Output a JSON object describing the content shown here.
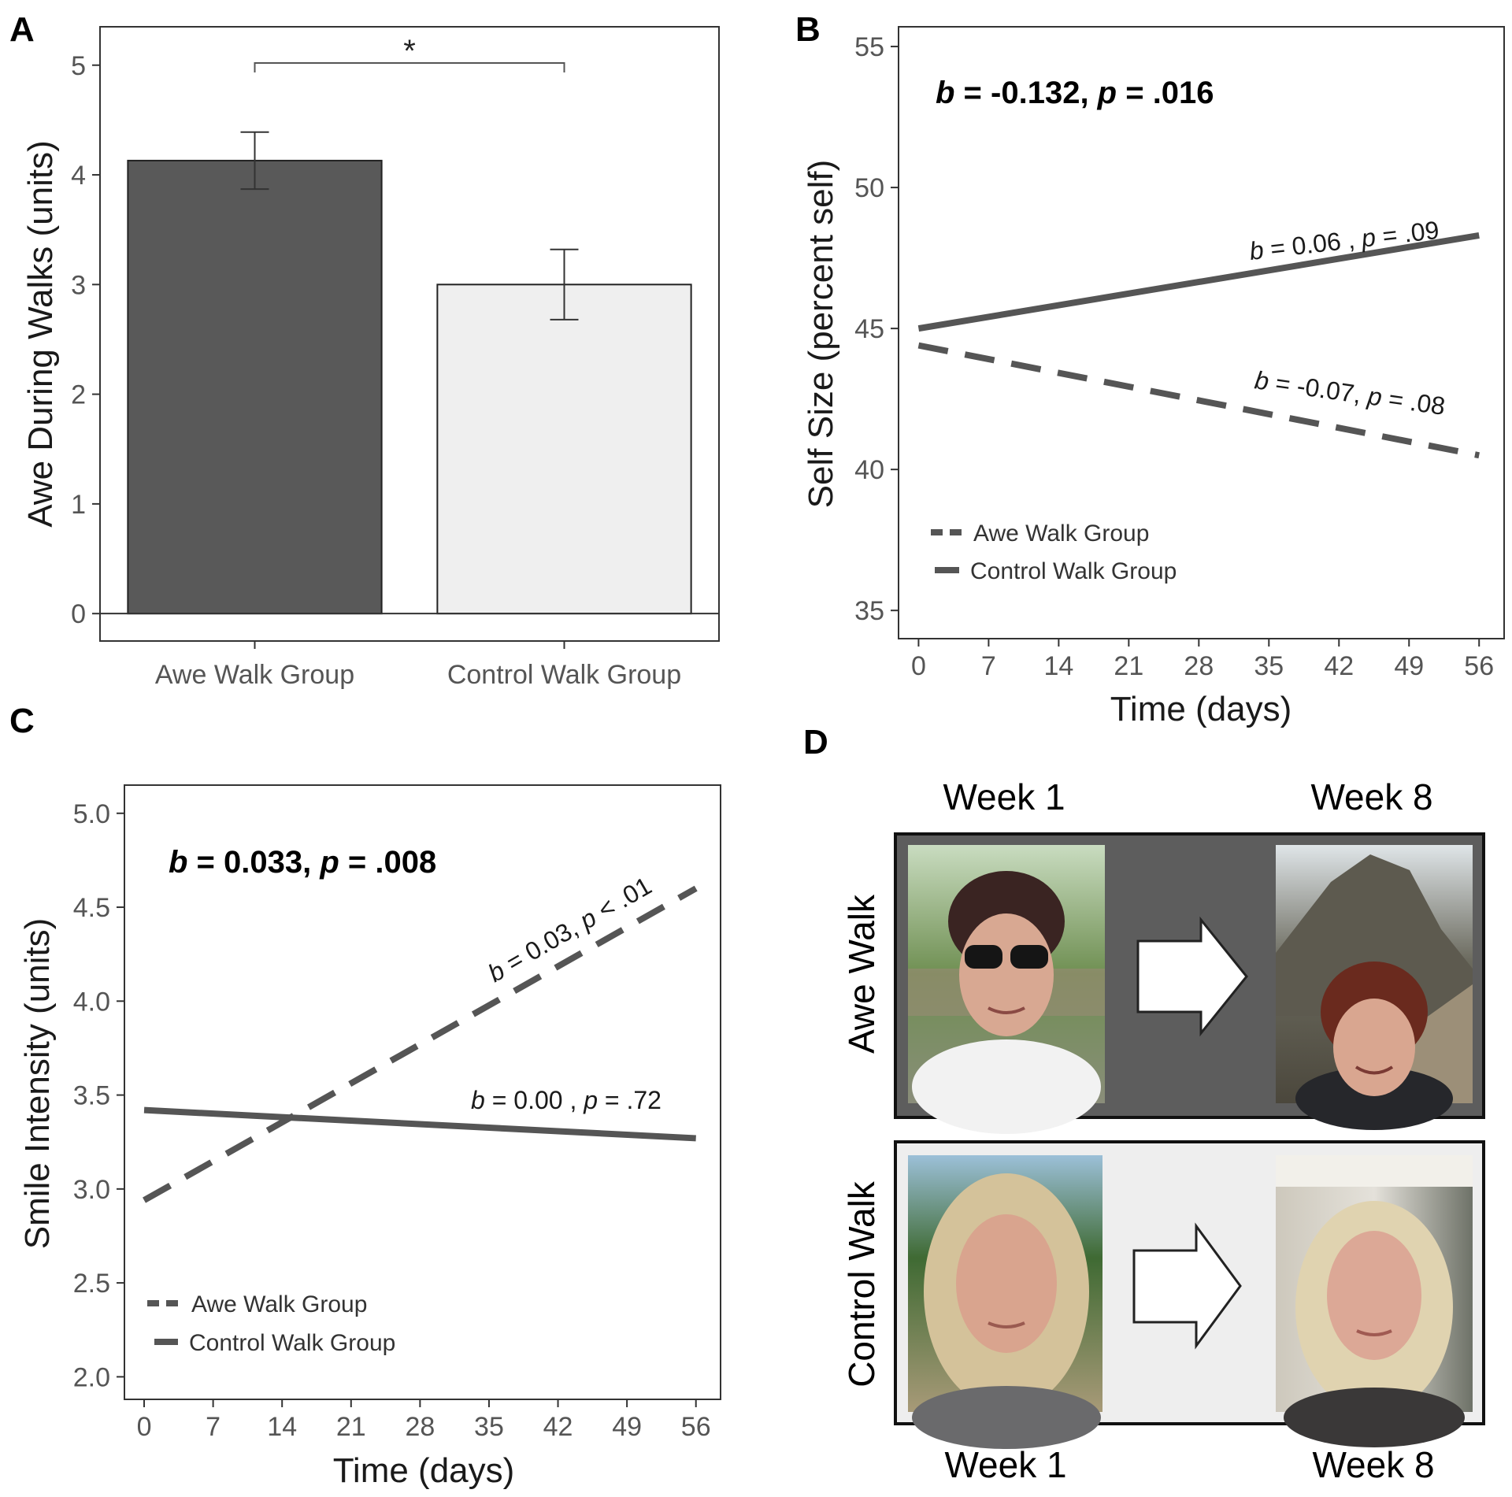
{
  "panels": {
    "A": {
      "letter": "A",
      "significance": "*"
    },
    "B": {
      "letter": "B"
    },
    "C": {
      "letter": "C"
    },
    "D": {
      "letter": "D"
    }
  },
  "chart_data": [
    {
      "panel": "A",
      "type": "bar",
      "categories": [
        "Awe Walk Group",
        "Control Walk Group"
      ],
      "values": [
        4.13,
        3.0
      ],
      "error": [
        0.26,
        0.32
      ],
      "colors": [
        "#595959",
        "#efefef"
      ],
      "ylabel": "Awe During Walks (units)",
      "xlabel": "",
      "ylim": [
        -0.25,
        5.35
      ],
      "yticks": [
        0,
        1,
        2,
        3,
        4,
        5
      ],
      "annotation": "*"
    },
    {
      "panel": "B",
      "type": "line",
      "xlabel": "Time (days)",
      "ylabel": "Self Size (percent self)",
      "xlim": [
        -2,
        58.5
      ],
      "ylim": [
        34,
        55.7
      ],
      "xticks": [
        0,
        7,
        14,
        21,
        28,
        35,
        42,
        49,
        56
      ],
      "yticks": [
        35,
        40,
        45,
        50,
        55
      ],
      "stat": {
        "b_label": "b",
        "text": " = -0.132, ",
        "p_label": "p",
        "value": " = .016"
      },
      "series": [
        {
          "name": "Awe Walk Group",
          "style": "dashed",
          "x": [
            0,
            56
          ],
          "y": [
            44.4,
            40.5
          ],
          "label": {
            "b": "b",
            "mid": " = -0.07, ",
            "p": "p",
            "value": " = .08"
          }
        },
        {
          "name": "Control Walk Group",
          "style": "solid",
          "x": [
            0,
            56
          ],
          "y": [
            45.0,
            48.3
          ],
          "label": {
            "b": "b",
            "mid": " = 0.06 , ",
            "p": "p",
            "value": " = .09"
          }
        }
      ],
      "legend": {
        "position": "bottom-left",
        "entries": [
          "Awe Walk Group",
          "Control Walk Group"
        ]
      }
    },
    {
      "panel": "C",
      "type": "line",
      "xlabel": "Time (days)",
      "ylabel": "Smile Intensity (units)",
      "xlim": [
        -2,
        58.5
      ],
      "ylim": [
        1.88,
        5.15
      ],
      "xticks": [
        0,
        7,
        14,
        21,
        28,
        35,
        42,
        49,
        56
      ],
      "yticks": [
        2.0,
        2.5,
        3.0,
        3.5,
        4.0,
        4.5,
        5.0
      ],
      "ytick_labels": [
        "2.0",
        "2.5",
        "3.0",
        "3.5",
        "4.0",
        "4.5",
        "5.0"
      ],
      "stat": {
        "b_label": "b",
        "text": " = 0.033, ",
        "p_label": "p",
        "value": " = .008"
      },
      "series": [
        {
          "name": "Awe Walk Group",
          "style": "dashed",
          "x": [
            0,
            56
          ],
          "y": [
            2.94,
            4.6
          ],
          "label": {
            "b": "b",
            "mid": " = 0.03, ",
            "p": "p",
            "value": " < .01"
          }
        },
        {
          "name": "Control Walk Group",
          "style": "solid",
          "x": [
            0,
            56
          ],
          "y": [
            3.42,
            3.27
          ],
          "label": {
            "b": "b",
            "mid": " = 0.00 , ",
            "p": "p",
            "value": " = .72"
          }
        }
      ],
      "legend": {
        "position": "bottom-left",
        "entries": [
          "Awe Walk Group",
          "Control Walk Group"
        ]
      }
    }
  ],
  "panel_d": {
    "week_start": "Week 1",
    "week_end": "Week 8",
    "rows": [
      {
        "label": "Awe Walk",
        "background": "#5d5d5d"
      },
      {
        "label": "Control Walk",
        "background": "#eeeeee"
      }
    ]
  }
}
